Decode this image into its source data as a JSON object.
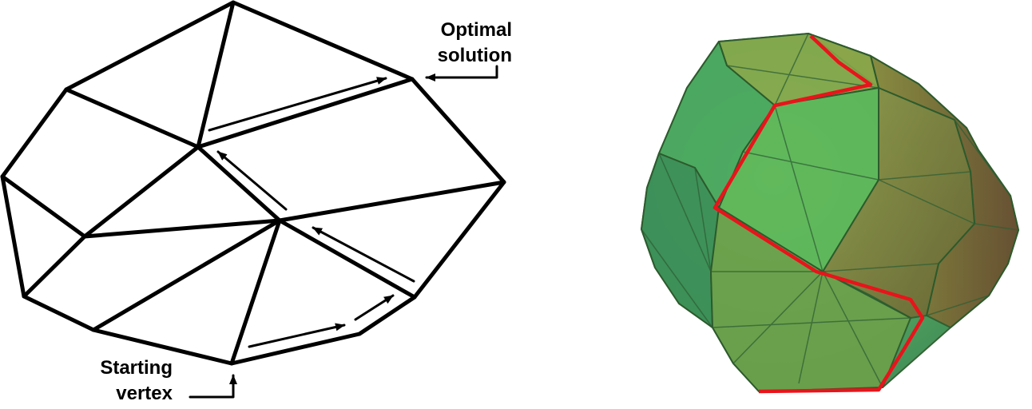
{
  "left_diagram": {
    "optimal_label_line1": "Optimal",
    "optimal_label_line2": "solution",
    "start_label_line1": "Starting",
    "start_label_line2": "vertex"
  },
  "colors": {
    "edge": "#000000",
    "path_highlight": "#e8141b",
    "polytope_green": "#3fa65a",
    "polytope_olive": "#8a8a3c",
    "polytope_brown": "#7a5a36"
  }
}
